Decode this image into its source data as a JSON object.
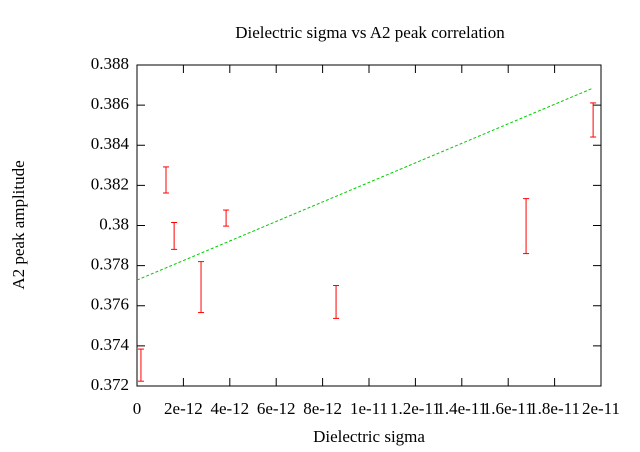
{
  "chart_data": {
    "type": "scatter",
    "title": "Dielectric sigma vs A2 peak correlation",
    "xlabel": "Dielectric sigma",
    "ylabel": "A2 peak amplitude",
    "xlim": [
      0,
      2e-11
    ],
    "xticks": [
      0,
      2e-12,
      4e-12,
      6e-12,
      8e-12,
      1e-11,
      1.2e-11,
      1.4e-11,
      1.6e-11,
      1.8e-11,
      2e-11
    ],
    "ylim": [
      0.372,
      0.388
    ],
    "yticks": [
      0.372,
      0.374,
      0.376,
      0.378,
      0.38,
      0.382,
      0.384,
      0.386,
      0.388
    ],
    "series": [
      {
        "type": "errorbar",
        "color": "#ff0000",
        "x": [
          1.7e-13,
          1.25e-12,
          1.6e-12,
          2.76e-12,
          3.84e-12,
          8.58e-12,
          1.677e-11,
          1.966e-11
        ],
        "values": [
          0.37304,
          0.38227,
          0.37948,
          0.37693,
          0.38037,
          0.37619,
          0.37997,
          0.38526
        ],
        "errors": [
          0.0008,
          0.00065,
          0.00067,
          0.00127,
          0.0004,
          0.00082,
          0.00137,
          0.00085
        ]
      },
      {
        "type": "line",
        "color": "#00cc00",
        "dashed": true,
        "x": [
          0,
          1.966e-11
        ],
        "values": [
          0.37728,
          0.38685
        ]
      }
    ]
  }
}
